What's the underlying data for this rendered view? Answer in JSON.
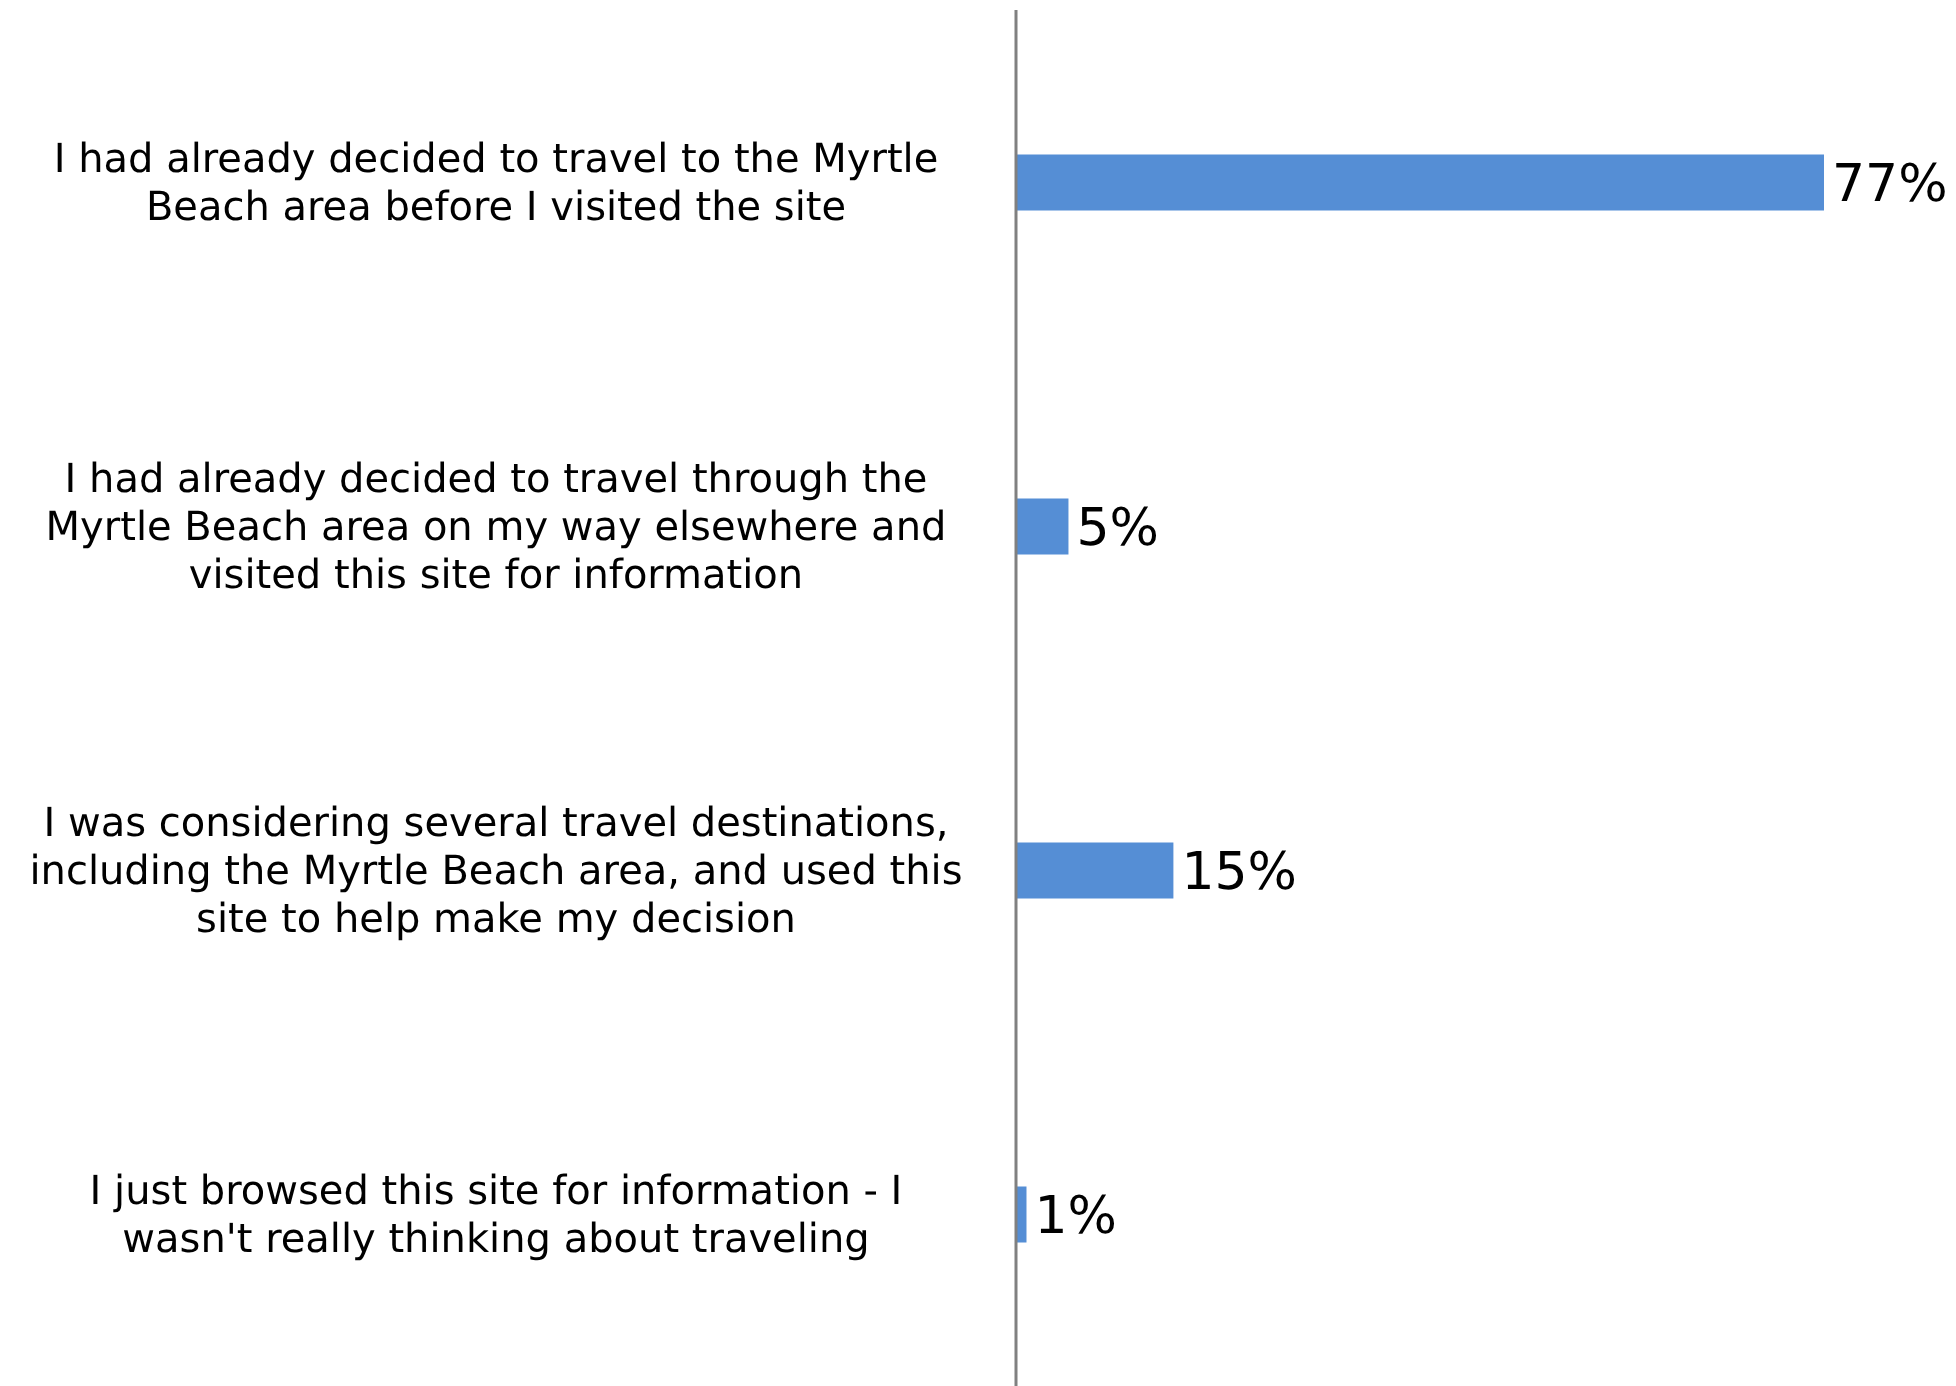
{
  "chart_data": {
    "type": "bar",
    "orientation": "horizontal",
    "categories": [
      "I had already decided to travel to the Myrtle Beach area before I visited the site",
      "I had already decided to travel through the Myrtle Beach area on my way elsewhere and visited this site for information",
      "I was considering several travel destinations, including the Myrtle Beach area, and used this site to help make my decision",
      "I just browsed this site for information - I wasn't really thinking about traveling"
    ],
    "values": [
      77,
      5,
      15,
      1
    ],
    "value_labels": [
      "77%",
      "5%",
      "15%",
      "1%"
    ],
    "color": "#558ed5"
  }
}
